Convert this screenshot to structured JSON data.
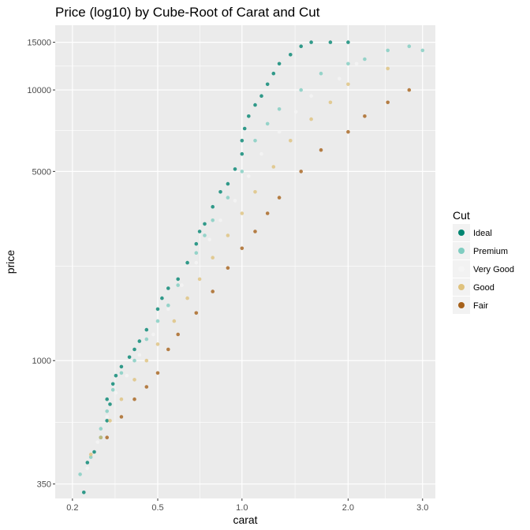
{
  "chart_data": {
    "type": "scatter",
    "title": "Price (log10) by Cube-Root of Carat and Cut",
    "xlabel": "carat",
    "ylabel": "price",
    "x_scale": "cube-root",
    "y_scale": "log10",
    "xlim": [
      0.2,
      3.0
    ],
    "ylim": [
      350,
      15000
    ],
    "x_ticks": [
      {
        "value": 0.2,
        "label": "0.2"
      },
      {
        "value": 0.5,
        "label": "0.5"
      },
      {
        "value": 1.0,
        "label": "1.0"
      },
      {
        "value": 2.0,
        "label": "2.0"
      },
      {
        "value": 3.0,
        "label": "3.0"
      }
    ],
    "y_ticks": [
      {
        "value": 350,
        "label": "350"
      },
      {
        "value": 1000,
        "label": "1000"
      },
      {
        "value": 5000,
        "label": "5000"
      },
      {
        "value": 10000,
        "label": "10000"
      },
      {
        "value": 15000,
        "label": "15000"
      }
    ],
    "grid": true,
    "legend": {
      "title": "Cut",
      "position": "right",
      "entries": [
        {
          "label": "Ideal",
          "color": "#018571"
        },
        {
          "label": "Premium",
          "color": "#80cdc1"
        },
        {
          "label": "Very Good",
          "color": "#f5f5f5"
        },
        {
          "label": "Good",
          "color": "#dfc27d"
        },
        {
          "label": "Fair",
          "color": "#a6611a"
        }
      ]
    },
    "series": [
      {
        "name": "Ideal",
        "color": "#018571",
        "points": [
          [
            0.23,
            326
          ],
          [
            0.24,
            420
          ],
          [
            0.26,
            460
          ],
          [
            0.28,
            520
          ],
          [
            0.3,
            600
          ],
          [
            0.3,
            720
          ],
          [
            0.31,
            690
          ],
          [
            0.32,
            820
          ],
          [
            0.33,
            880
          ],
          [
            0.35,
            950
          ],
          [
            0.38,
            1030
          ],
          [
            0.4,
            1100
          ],
          [
            0.42,
            1180
          ],
          [
            0.45,
            1300
          ],
          [
            0.5,
            1550
          ],
          [
            0.52,
            1700
          ],
          [
            0.55,
            1850
          ],
          [
            0.6,
            2000
          ],
          [
            0.65,
            2300
          ],
          [
            0.7,
            2700
          ],
          [
            0.72,
            3000
          ],
          [
            0.75,
            3200
          ],
          [
            0.8,
            3700
          ],
          [
            0.85,
            4200
          ],
          [
            0.9,
            4500
          ],
          [
            0.95,
            5100
          ],
          [
            1.0,
            5800
          ],
          [
            1.0,
            6500
          ],
          [
            1.02,
            7200
          ],
          [
            1.05,
            8000
          ],
          [
            1.1,
            8800
          ],
          [
            1.15,
            9500
          ],
          [
            1.2,
            10500
          ],
          [
            1.25,
            11500
          ],
          [
            1.3,
            12500
          ],
          [
            1.4,
            13500
          ],
          [
            1.5,
            14500
          ],
          [
            1.6,
            15000
          ],
          [
            1.8,
            15000
          ],
          [
            2.0,
            15000
          ]
        ]
      },
      {
        "name": "Premium",
        "color": "#80cdc1",
        "points": [
          [
            0.22,
            380
          ],
          [
            0.25,
            440
          ],
          [
            0.28,
            560
          ],
          [
            0.3,
            650
          ],
          [
            0.32,
            780
          ],
          [
            0.35,
            900
          ],
          [
            0.4,
            1000
          ],
          [
            0.45,
            1200
          ],
          [
            0.5,
            1400
          ],
          [
            0.55,
            1600
          ],
          [
            0.6,
            1900
          ],
          [
            0.7,
            2500
          ],
          [
            0.75,
            2900
          ],
          [
            0.8,
            3300
          ],
          [
            0.9,
            4000
          ],
          [
            1.0,
            5000
          ],
          [
            1.1,
            6500
          ],
          [
            1.2,
            7500
          ],
          [
            1.3,
            8500
          ],
          [
            1.5,
            10000
          ],
          [
            1.7,
            11500
          ],
          [
            2.0,
            12500
          ],
          [
            2.2,
            13000
          ],
          [
            2.5,
            14000
          ],
          [
            2.8,
            14500
          ],
          [
            3.0,
            14000
          ]
        ]
      },
      {
        "name": "Very Good",
        "color": "#f5f5f5",
        "points": [
          [
            0.24,
            400
          ],
          [
            0.27,
            500
          ],
          [
            0.3,
            620
          ],
          [
            0.33,
            760
          ],
          [
            0.37,
            880
          ],
          [
            0.42,
            1050
          ],
          [
            0.48,
            1250
          ],
          [
            0.55,
            1550
          ],
          [
            0.62,
            1900
          ],
          [
            0.7,
            2300
          ],
          [
            0.78,
            2800
          ],
          [
            0.85,
            3300
          ],
          [
            0.95,
            3900
          ],
          [
            1.05,
            4800
          ],
          [
            1.15,
            5800
          ],
          [
            1.3,
            7000
          ],
          [
            1.45,
            8300
          ],
          [
            1.6,
            9500
          ],
          [
            1.9,
            11000
          ],
          [
            2.1,
            12500
          ]
        ]
      },
      {
        "name": "Good",
        "color": "#dfc27d",
        "points": [
          [
            0.25,
            450
          ],
          [
            0.28,
            520
          ],
          [
            0.31,
            600
          ],
          [
            0.35,
            720
          ],
          [
            0.4,
            850
          ],
          [
            0.45,
            1000
          ],
          [
            0.5,
            1150
          ],
          [
            0.58,
            1400
          ],
          [
            0.65,
            1700
          ],
          [
            0.72,
            2000
          ],
          [
            0.8,
            2400
          ],
          [
            0.9,
            2900
          ],
          [
            1.0,
            3500
          ],
          [
            1.1,
            4200
          ],
          [
            1.25,
            5200
          ],
          [
            1.4,
            6500
          ],
          [
            1.6,
            7800
          ],
          [
            1.8,
            9000
          ],
          [
            2.0,
            10500
          ],
          [
            2.5,
            12000
          ]
        ]
      },
      {
        "name": "Fair",
        "color": "#a6611a",
        "points": [
          [
            0.3,
            520
          ],
          [
            0.35,
            620
          ],
          [
            0.4,
            720
          ],
          [
            0.45,
            800
          ],
          [
            0.5,
            900
          ],
          [
            0.55,
            1100
          ],
          [
            0.6,
            1250
          ],
          [
            0.7,
            1500
          ],
          [
            0.8,
            1800
          ],
          [
            0.9,
            2200
          ],
          [
            1.0,
            2600
          ],
          [
            1.1,
            3000
          ],
          [
            1.2,
            3500
          ],
          [
            1.3,
            4000
          ],
          [
            1.5,
            5000
          ],
          [
            1.7,
            6000
          ],
          [
            2.0,
            7000
          ],
          [
            2.2,
            8000
          ],
          [
            2.5,
            9000
          ],
          [
            2.8,
            10000
          ]
        ]
      }
    ]
  }
}
